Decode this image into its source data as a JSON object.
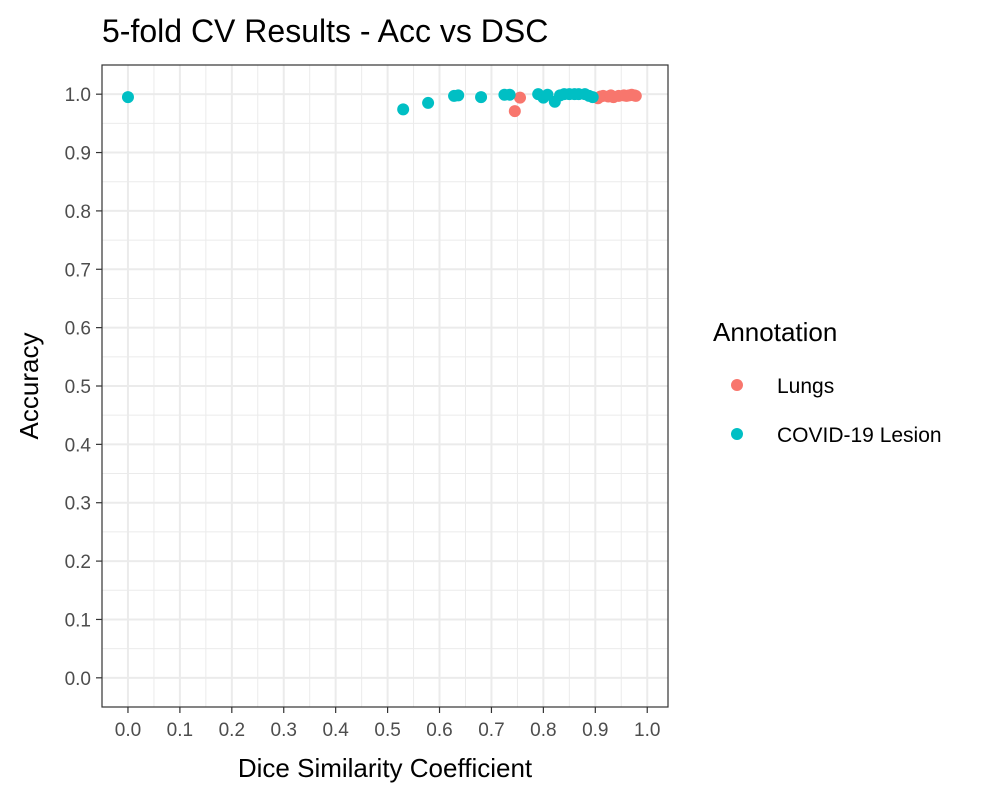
{
  "chart_data": {
    "type": "scatter",
    "title": "5-fold CV Results - Acc vs DSC",
    "xlabel": "Dice Similarity Coefficient",
    "ylabel": "Accuracy",
    "xlim": [
      -0.05,
      1.04
    ],
    "ylim": [
      -0.05,
      1.05
    ],
    "x_ticks": [
      0.0,
      0.1,
      0.2,
      0.3,
      0.4,
      0.5,
      0.6,
      0.7,
      0.8,
      0.9,
      1.0
    ],
    "y_ticks": [
      0.0,
      0.1,
      0.2,
      0.3,
      0.4,
      0.5,
      0.6,
      0.7,
      0.8,
      0.9,
      1.0
    ],
    "x_tick_labels": [
      "0.0",
      "0.1",
      "0.2",
      "0.3",
      "0.4",
      "0.5",
      "0.6",
      "0.7",
      "0.8",
      "0.9",
      "1.0"
    ],
    "y_tick_labels": [
      "0.0",
      "0.1",
      "0.2",
      "0.3",
      "0.4",
      "0.5",
      "0.6",
      "0.7",
      "0.8",
      "0.9",
      "1.0"
    ],
    "grid": true,
    "legend": {
      "title": "Annotation",
      "placement": "right"
    },
    "series": [
      {
        "name": "Lungs",
        "color": "#F8766D",
        "points": [
          {
            "x": 0.745,
            "y": 0.971
          },
          {
            "x": 0.755,
            "y": 0.994
          },
          {
            "x": 0.905,
            "y": 0.993
          },
          {
            "x": 0.91,
            "y": 0.996
          },
          {
            "x": 0.915,
            "y": 0.997
          },
          {
            "x": 0.925,
            "y": 0.996
          },
          {
            "x": 0.93,
            "y": 0.998
          },
          {
            "x": 0.935,
            "y": 0.995
          },
          {
            "x": 0.945,
            "y": 0.997
          },
          {
            "x": 0.955,
            "y": 0.998
          },
          {
            "x": 0.96,
            "y": 0.997
          },
          {
            "x": 0.965,
            "y": 0.998
          },
          {
            "x": 0.97,
            "y": 0.999
          },
          {
            "x": 0.975,
            "y": 0.998
          },
          {
            "x": 0.978,
            "y": 0.997
          }
        ]
      },
      {
        "name": "COVID-19 Lesion",
        "color": "#00BFC4",
        "points": [
          {
            "x": 0.0,
            "y": 0.995
          },
          {
            "x": 0.53,
            "y": 0.974
          },
          {
            "x": 0.578,
            "y": 0.985
          },
          {
            "x": 0.628,
            "y": 0.997
          },
          {
            "x": 0.636,
            "y": 0.998
          },
          {
            "x": 0.68,
            "y": 0.995
          },
          {
            "x": 0.725,
            "y": 0.999
          },
          {
            "x": 0.735,
            "y": 0.999
          },
          {
            "x": 0.79,
            "y": 1.0
          },
          {
            "x": 0.8,
            "y": 0.994
          },
          {
            "x": 0.808,
            "y": 0.999
          },
          {
            "x": 0.822,
            "y": 0.987
          },
          {
            "x": 0.832,
            "y": 0.998
          },
          {
            "x": 0.84,
            "y": 1.0
          },
          {
            "x": 0.85,
            "y": 1.0
          },
          {
            "x": 0.86,
            "y": 1.0
          },
          {
            "x": 0.868,
            "y": 1.0
          },
          {
            "x": 0.88,
            "y": 1.0
          },
          {
            "x": 0.888,
            "y": 0.997
          },
          {
            "x": 0.895,
            "y": 0.995
          }
        ]
      }
    ]
  }
}
